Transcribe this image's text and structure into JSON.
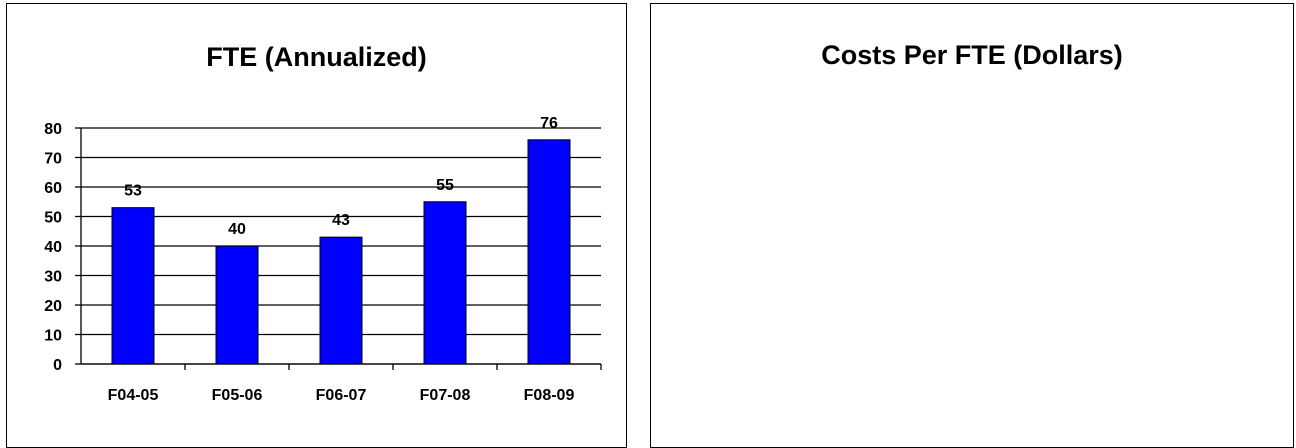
{
  "chart_data": [
    {
      "type": "bar",
      "title": "FTE (Annualized)",
      "categories": [
        "F04-05",
        "F05-06",
        "F06-07",
        "F07-08",
        "F08-09"
      ],
      "values": [
        53,
        40,
        43,
        55,
        76
      ],
      "data_labels": [
        "53",
        "40",
        "43",
        "55",
        "76"
      ],
      "xlabel": "",
      "ylabel": "",
      "ylim": [
        0,
        80
      ],
      "yticks": [
        "0",
        "10",
        "20",
        "30",
        "40",
        "50",
        "60",
        "70",
        "80"
      ],
      "grid": true,
      "bar_color": "#0000FF"
    },
    {
      "type": "bar",
      "title": "Costs Per FTE (Dollars)",
      "categories": [],
      "values": []
    }
  ]
}
